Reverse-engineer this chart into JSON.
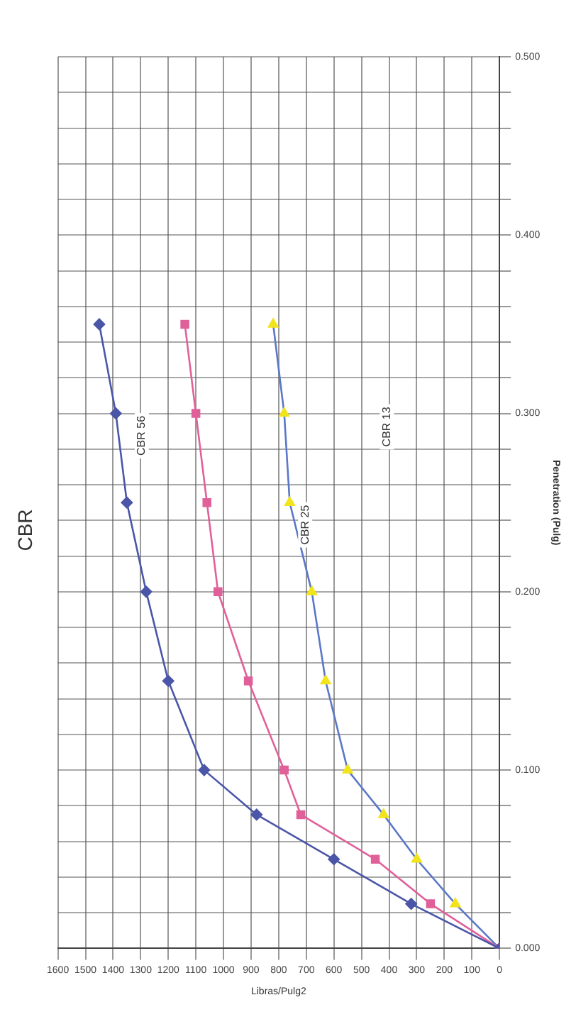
{
  "chart_data": {
    "type": "line",
    "title": "CBR",
    "xlabel": "Libras/Pulg2",
    "ylabel": "Penetration (Pulg)",
    "series": [
      {
        "color": "#4b56a8",
        "marker": "diamond",
        "x": [
          0,
          320,
          600,
          880,
          1070,
          1200,
          1280,
          1350,
          1390,
          1450
        ],
        "values": [
          0,
          0.025,
          0.05,
          0.075,
          0.1,
          0.15,
          0.2,
          0.25,
          0.3,
          0.35
        ]
      },
      {
        "color": "#e0609a",
        "marker": "square",
        "x": [
          0,
          250,
          450,
          720,
          780,
          910,
          1020,
          1060,
          1100,
          1140
        ],
        "values": [
          0,
          0.025,
          0.05,
          0.075,
          0.1,
          0.15,
          0.2,
          0.25,
          0.3,
          0.35
        ]
      },
      {
        "color": "#5a78c8",
        "colors": [
          "#f2e41c",
          "#f2e41c",
          "#f2e41c",
          "#f2e41c",
          "#f2e41c",
          "#f2e41c",
          "#f2e41c",
          "#f2e41c",
          "#f2e41c",
          "#f2e41c"
        ],
        "marker": "triangle",
        "x": [
          0,
          160,
          300,
          420,
          550,
          630,
          680,
          760,
          780,
          820
        ],
        "values": [
          0,
          0.025,
          0.05,
          0.075,
          0.1,
          0.15,
          0.2,
          0.25,
          0.3,
          0.35
        ]
      }
    ],
    "ylim": [
      0,
      0.5
    ],
    "yticks": [
      {
        "value": 0,
        "label": "0.000"
      },
      {
        "value": 0.02,
        "label": null
      },
      {
        "value": 0.04,
        "label": null
      },
      {
        "value": 0.06,
        "label": null
      },
      {
        "value": 0.08,
        "label": null
      },
      {
        "value": 0.1,
        "label": "0.100"
      },
      {
        "value": 0.12,
        "label": null
      },
      {
        "value": 0.14,
        "label": null
      },
      {
        "value": 0.16,
        "label": null
      },
      {
        "value": 0.18,
        "label": null
      },
      {
        "value": 0.2,
        "label": "0.200"
      },
      {
        "value": 0.22,
        "label": null
      },
      {
        "value": 0.24,
        "label": null
      },
      {
        "value": 0.26,
        "label": null
      },
      {
        "value": 0.28,
        "label": null
      },
      {
        "value": 0.3,
        "label": "0.300"
      },
      {
        "value": 0.32,
        "label": null
      },
      {
        "value": 0.34,
        "label": null
      },
      {
        "value": 0.36,
        "label": null
      },
      {
        "value": 0.38,
        "label": null
      },
      {
        "value": 0.4,
        "label": "0.400"
      },
      {
        "value": 0.42,
        "label": null
      },
      {
        "value": 0.44,
        "label": null
      },
      {
        "value": 0.46,
        "label": null
      },
      {
        "value": 0.48,
        "label": null
      },
      {
        "value": 0.5,
        "label": "0.500"
      }
    ],
    "xlim": [
      1600,
      0
    ],
    "xticks": [
      1600,
      1500,
      1400,
      1300,
      1200,
      1100,
      1000,
      900,
      800,
      700,
      600,
      500,
      400,
      300,
      200,
      100,
      0
    ],
    "grid": true,
    "legend": false,
    "annotations": [
      "CBR 56",
      "CBR 25",
      "CBR 13"
    ]
  }
}
